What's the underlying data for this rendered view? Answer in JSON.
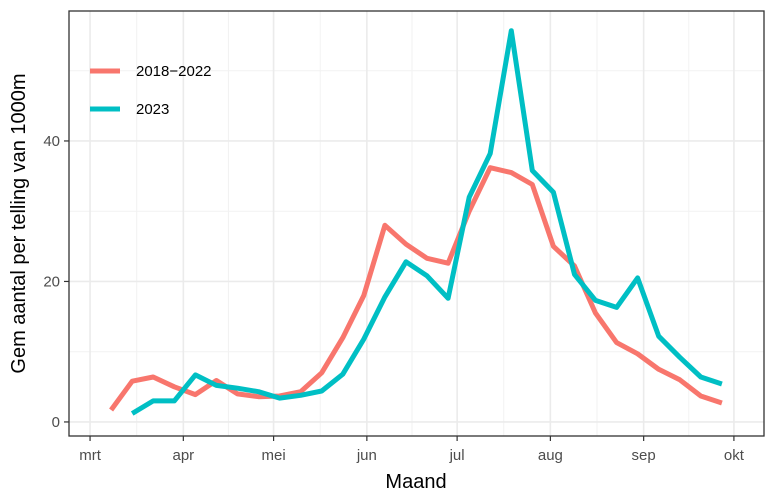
{
  "chart_data": {
    "type": "line",
    "title": "",
    "xlabel": "Maand",
    "ylabel": "Gem aantal per telling van 1000m",
    "x_ticks": [
      {
        "label": "mrt",
        "day": 60
      },
      {
        "label": "apr",
        "day": 91
      },
      {
        "label": "mei",
        "day": 121
      },
      {
        "label": "jun",
        "day": 152
      },
      {
        "label": "jul",
        "day": 182
      },
      {
        "label": "aug",
        "day": 213
      },
      {
        "label": "sep",
        "day": 244
      },
      {
        "label": "okt",
        "day": 274
      }
    ],
    "y_ticks": [
      0,
      20,
      40
    ],
    "xlim": [
      53,
      284
    ],
    "ylim": [
      -2,
      58.5
    ],
    "grid": true,
    "legend_position": "top-left",
    "series": [
      {
        "name": "2018−2022",
        "color": "#F8766D",
        "points": [
          [
            67,
            1.7
          ],
          [
            74,
            5.8
          ],
          [
            81,
            6.4
          ],
          [
            88,
            5.0
          ],
          [
            95,
            3.9
          ],
          [
            102,
            5.9
          ],
          [
            109,
            4.0
          ],
          [
            116,
            3.6
          ],
          [
            123,
            3.7
          ],
          [
            130,
            4.3
          ],
          [
            137,
            7.0
          ],
          [
            144,
            12.0
          ],
          [
            151,
            18.0
          ],
          [
            158,
            28.0
          ],
          [
            165,
            25.3
          ],
          [
            172,
            23.3
          ],
          [
            179,
            22.6
          ],
          [
            186,
            30.0
          ],
          [
            193,
            36.2
          ],
          [
            200,
            35.5
          ],
          [
            207,
            33.8
          ],
          [
            214,
            25.0
          ],
          [
            221,
            22.2
          ],
          [
            228,
            15.5
          ],
          [
            235,
            11.3
          ],
          [
            242,
            9.7
          ],
          [
            249,
            7.5
          ],
          [
            256,
            6.0
          ],
          [
            263,
            3.7
          ],
          [
            270,
            2.7
          ]
        ]
      },
      {
        "name": "2023",
        "color": "#00BFC4",
        "points": [
          [
            74,
            1.2
          ],
          [
            81,
            3.0
          ],
          [
            88,
            3.0
          ],
          [
            95,
            6.7
          ],
          [
            102,
            5.2
          ],
          [
            109,
            4.8
          ],
          [
            116,
            4.3
          ],
          [
            123,
            3.4
          ],
          [
            130,
            3.8
          ],
          [
            137,
            4.4
          ],
          [
            144,
            6.8
          ],
          [
            151,
            11.8
          ],
          [
            158,
            17.8
          ],
          [
            165,
            22.8
          ],
          [
            172,
            20.8
          ],
          [
            179,
            17.6
          ],
          [
            186,
            32.0
          ],
          [
            193,
            38.2
          ],
          [
            200,
            55.7
          ],
          [
            207,
            35.8
          ],
          [
            214,
            32.7
          ],
          [
            221,
            21.0
          ],
          [
            228,
            17.3
          ],
          [
            235,
            16.3
          ],
          [
            242,
            20.5
          ],
          [
            249,
            12.2
          ],
          [
            256,
            9.2
          ],
          [
            263,
            6.4
          ],
          [
            270,
            5.4
          ]
        ]
      }
    ]
  }
}
